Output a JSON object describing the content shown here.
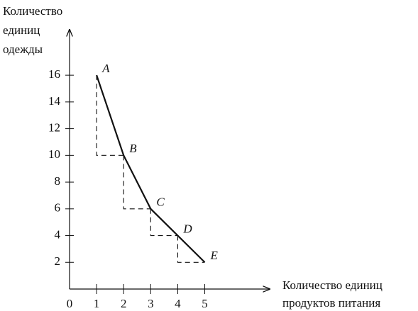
{
  "chart_data": {
    "type": "line",
    "ylabel": [
      "Количество",
      "единиц",
      "одежды"
    ],
    "xlabel": [
      "Количество единиц",
      "продуктов питания"
    ],
    "x": [
      1,
      2,
      3,
      4,
      5
    ],
    "series": [
      {
        "values": [
          16,
          10,
          6,
          4,
          2
        ],
        "color": "#111111"
      }
    ],
    "point_labels": [
      "A",
      "B",
      "C",
      "D",
      "E"
    ],
    "xlim": [
      0,
      7.4
    ],
    "ylim": [
      0,
      19.4
    ],
    "xticks": [
      0,
      1,
      2,
      3,
      4,
      5
    ],
    "yticks": [
      2,
      4,
      6,
      8,
      10,
      12,
      14,
      16
    ],
    "step_guides": true
  }
}
